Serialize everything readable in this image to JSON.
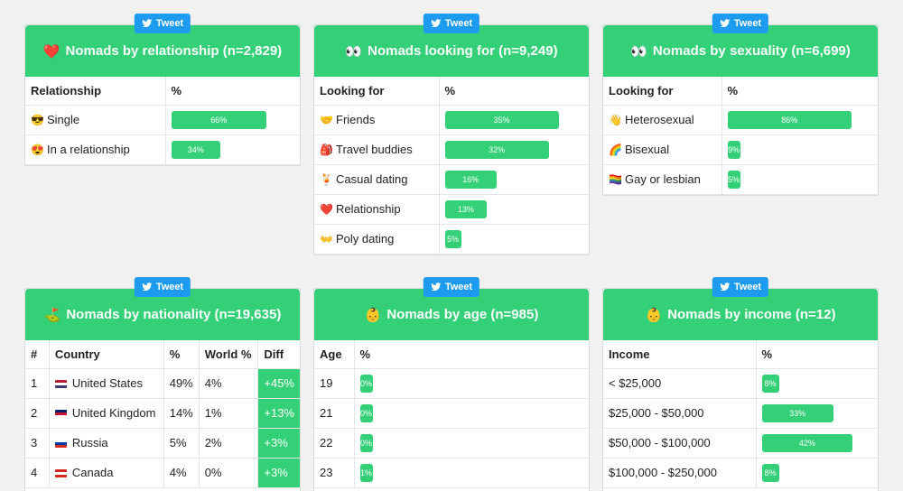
{
  "tweet_label": "Tweet",
  "relationship": {
    "title": "Nomads by relationship (n=2,829)",
    "emoji": "❤️",
    "headers": [
      "Relationship",
      "%"
    ],
    "rows": [
      {
        "icon": "😎",
        "label": "Single",
        "pct": "66%",
        "value": 66
      },
      {
        "icon": "😍",
        "label": "In a relationship",
        "pct": "34%",
        "value": 34
      }
    ]
  },
  "looking": {
    "title": "Nomads looking for (n=9,249)",
    "emoji": "👀",
    "headers": [
      "Looking for",
      "%"
    ],
    "rows": [
      {
        "icon": "🤝",
        "label": "Friends",
        "pct": "35%",
        "value": 35
      },
      {
        "icon": "🎒",
        "label": "Travel buddies",
        "pct": "32%",
        "value": 32
      },
      {
        "icon": "🍹",
        "label": "Casual dating",
        "pct": "16%",
        "value": 16
      },
      {
        "icon": "❤️",
        "label": "Relationship",
        "pct": "13%",
        "value": 13
      },
      {
        "icon": "👐",
        "label": "Poly dating",
        "pct": "5%",
        "value": 5
      }
    ]
  },
  "sexuality": {
    "title": "Nomads by sexuality (n=6,699)",
    "emoji": "👀",
    "headers": [
      "Looking for",
      "%"
    ],
    "rows": [
      {
        "icon": "👋",
        "label": "Heterosexual",
        "pct": "86%",
        "value": 86
      },
      {
        "icon": "🌈",
        "label": "Bisexual",
        "pct": "9%",
        "value": 9
      },
      {
        "icon": "🏳️‍🌈",
        "label": "Gay or lesbian",
        "pct": "5%",
        "value": 5
      }
    ]
  },
  "nationality": {
    "title": "Nomads by nationality (n=19,635)",
    "emoji": "⛳",
    "headers": [
      "#",
      "Country",
      "%",
      "World %",
      "Diff"
    ],
    "rows": [
      {
        "rank": "1",
        "country": "United States",
        "pct": "49%",
        "world": "4%",
        "diff": "+45%",
        "flag": [
          "#b22234",
          "#ffffff",
          "#3c3b6e"
        ]
      },
      {
        "rank": "2",
        "country": "United Kingdom",
        "pct": "14%",
        "world": "1%",
        "diff": "+13%",
        "flag": [
          "#012169",
          "#c8102e",
          "#ffffff"
        ]
      },
      {
        "rank": "3",
        "country": "Russia",
        "pct": "5%",
        "world": "2%",
        "diff": "+3%",
        "flag": [
          "#ffffff",
          "#0039a6",
          "#d52b1e"
        ]
      },
      {
        "rank": "4",
        "country": "Canada",
        "pct": "4%",
        "world": "0%",
        "diff": "+3%",
        "flag": [
          "#d52b1e",
          "#ffffff",
          "#d52b1e"
        ]
      }
    ]
  },
  "age": {
    "title": "Nomads by age (n=985)",
    "emoji": "👶",
    "headers": [
      "Age",
      "%"
    ],
    "rows": [
      {
        "label": "19",
        "pct": "0%",
        "value": 0
      },
      {
        "label": "21",
        "pct": "0%",
        "value": 0
      },
      {
        "label": "22",
        "pct": "0%",
        "value": 0
      },
      {
        "label": "23",
        "pct": "1%",
        "value": 1
      }
    ]
  },
  "income": {
    "title": "Nomads by income (n=12)",
    "emoji": "👶",
    "headers": [
      "Income",
      "%"
    ],
    "rows": [
      {
        "label": "< $25,000",
        "pct": "8%",
        "value": 8
      },
      {
        "label": "$25,000 - $50,000",
        "pct": "33%",
        "value": 33
      },
      {
        "label": "$50,000 - $100,000",
        "pct": "42%",
        "value": 42
      },
      {
        "label": "$100,000 - $250,000",
        "pct": "8%",
        "value": 8
      }
    ]
  },
  "colors": {
    "accent": "#34d077",
    "tweet": "#1d9bf0"
  }
}
